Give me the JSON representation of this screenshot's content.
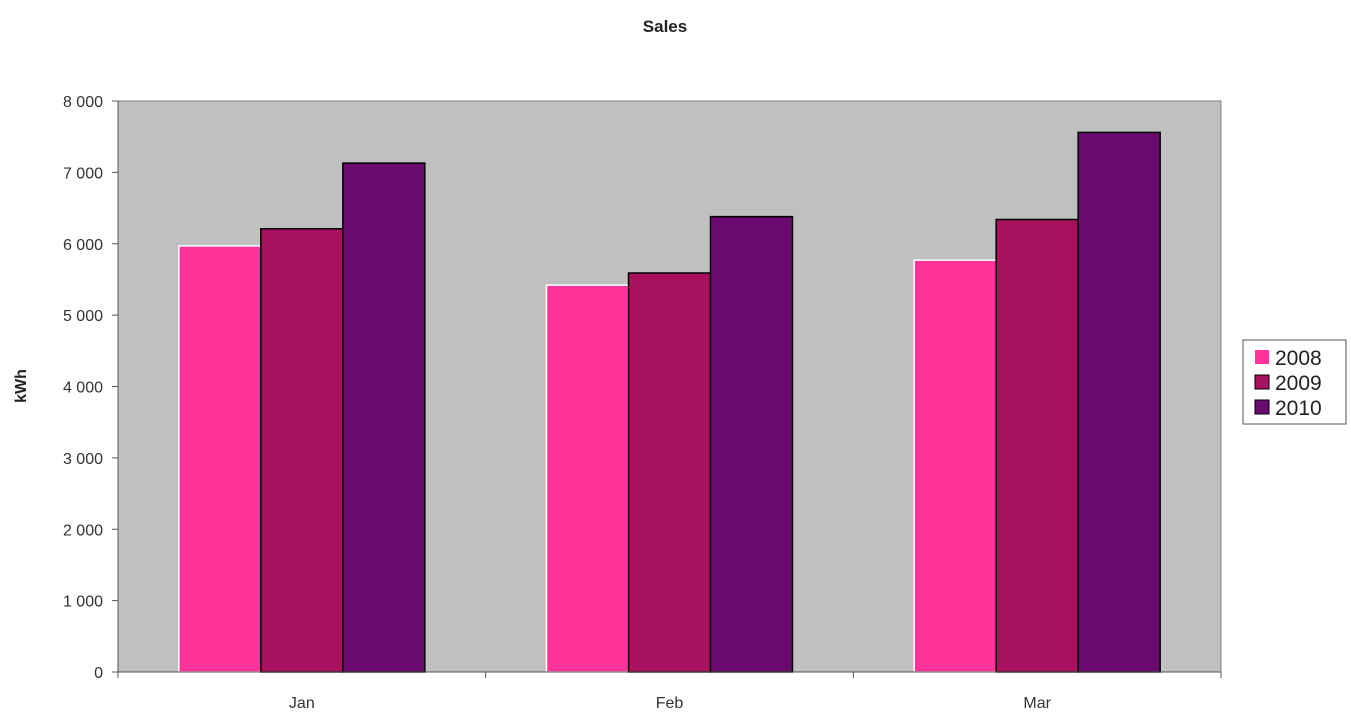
{
  "chart_data": {
    "type": "bar",
    "title": "Sales",
    "ylabel": "kWh",
    "xlabel": "",
    "categories": [
      "Jan",
      "Feb",
      "Mar"
    ],
    "ylim": [
      0,
      8000
    ],
    "yticks": [
      0,
      1000,
      2000,
      3000,
      4000,
      5000,
      6000,
      7000,
      8000
    ],
    "ytick_labels": [
      "0",
      "1 000",
      "2 000",
      "3 000",
      "4 000",
      "5 000",
      "6 000",
      "7 000",
      "8 000"
    ],
    "grid": false,
    "legend_position": "right",
    "plot_background": "#c0c0c0",
    "series": [
      {
        "name": "2008",
        "color": "#ff3399",
        "values": [
          5970,
          5420,
          5770
        ]
      },
      {
        "name": "2009",
        "color": "#a8115e",
        "values": [
          6210,
          5590,
          6340
        ]
      },
      {
        "name": "2010",
        "color": "#6a0a6e",
        "values": [
          7130,
          6380,
          7560
        ]
      }
    ]
  }
}
